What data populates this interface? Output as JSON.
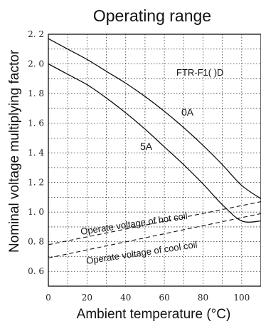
{
  "chart_data": {
    "type": "line",
    "title": "Operating range",
    "xlabel": "Ambient temperature (°C)",
    "ylabel": "Nominal voltage multiplying factor",
    "xlim": [
      0,
      110
    ],
    "ylim": [
      0.5,
      2.2
    ],
    "x_ticks": [
      0,
      20,
      40,
      60,
      80,
      100
    ],
    "y_ticks": [
      0.6,
      0.8,
      1.0,
      1.2,
      1.4,
      1.6,
      1.8,
      2.0,
      2.2
    ],
    "x_tick_labels": [
      "0",
      "20",
      "40",
      "60",
      "80",
      "100"
    ],
    "y_tick_labels": [
      "0. 6",
      "0. 8",
      "1. 0",
      "1. 2",
      "1. 4",
      "1. 6",
      "1. 8",
      "2. 0",
      "2. 2"
    ],
    "grid": true,
    "model_label": "FTR-F1( )D",
    "series": [
      {
        "name": "0A",
        "style": "solid",
        "x": [
          0,
          10,
          20,
          30,
          40,
          50,
          60,
          70,
          80,
          90,
          100,
          110
        ],
        "y": [
          2.17,
          2.1,
          2.03,
          1.95,
          1.87,
          1.78,
          1.68,
          1.57,
          1.45,
          1.32,
          1.18,
          1.09
        ]
      },
      {
        "name": "5A",
        "style": "solid",
        "x": [
          0,
          10,
          20,
          30,
          40,
          50,
          60,
          70,
          80,
          90,
          100,
          110
        ],
        "y": [
          2.0,
          1.93,
          1.86,
          1.77,
          1.67,
          1.56,
          1.44,
          1.32,
          1.19,
          1.05,
          0.94,
          0.94
        ]
      },
      {
        "name": "Operate voltage of hot coil",
        "style": "dashed",
        "x": [
          0,
          110
        ],
        "y": [
          0.78,
          1.07
        ]
      },
      {
        "name": "Operate voltage of cool coil",
        "style": "dashed",
        "x": [
          0,
          110
        ],
        "y": [
          0.69,
          0.99
        ]
      }
    ]
  }
}
